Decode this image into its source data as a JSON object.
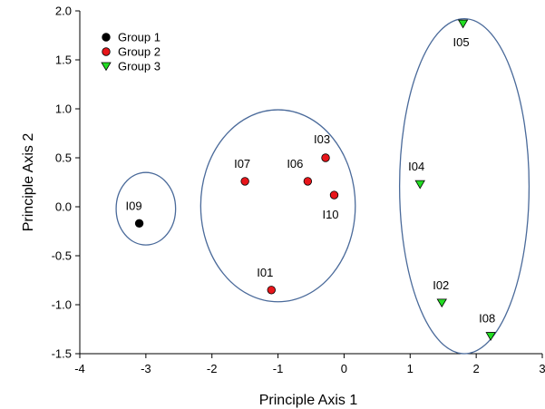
{
  "chart_data": {
    "type": "scatter",
    "title": "",
    "xlabel": "Principle Axis 1",
    "ylabel": "Principle Axis 2",
    "xlim": [
      -4,
      3
    ],
    "ylim": [
      -1.5,
      2.0
    ],
    "xticks": [
      -4,
      -3,
      -2,
      -1,
      0,
      1,
      2,
      3
    ],
    "xtick_labels": [
      "-4",
      "-3",
      "-2",
      "-1",
      "0",
      "1",
      "2",
      "3"
    ],
    "yticks": [
      -1.5,
      -1.0,
      -0.5,
      0.0,
      0.5,
      1.0,
      1.5,
      2.0
    ],
    "ytick_labels": [
      "-1.5",
      "-1.0",
      "-0.5",
      "0.0",
      "0.5",
      "1.0",
      "1.5",
      "2.0"
    ],
    "grid": false,
    "legend_position": "top-left",
    "series": [
      {
        "name": "Group 1",
        "marker": "circle",
        "color": "#000000",
        "points": [
          {
            "label": "I09",
            "x": -3.1,
            "y": -0.17
          }
        ]
      },
      {
        "name": "Group 2",
        "marker": "circle",
        "color": "#e8161b",
        "points": [
          {
            "label": "I07",
            "x": -1.5,
            "y": 0.26
          },
          {
            "label": "I06",
            "x": -0.55,
            "y": 0.26
          },
          {
            "label": "I03",
            "x": -0.28,
            "y": 0.5
          },
          {
            "label": "I10",
            "x": -0.15,
            "y": 0.12
          },
          {
            "label": "I01",
            "x": -1.1,
            "y": -0.85
          }
        ]
      },
      {
        "name": "Group 3",
        "marker": "triangle-down",
        "color": "#22dd22",
        "points": [
          {
            "label": "I05",
            "x": 1.8,
            "y": 1.87
          },
          {
            "label": "I04",
            "x": 1.15,
            "y": 0.23
          },
          {
            "label": "I02",
            "x": 1.48,
            "y": -0.98
          },
          {
            "label": "I08",
            "x": 2.22,
            "y": -1.32
          }
        ]
      }
    ],
    "group_ellipses": [
      {
        "group": "Group 1",
        "cx": -3.0,
        "cy": -0.02,
        "rx": 0.45,
        "ry": 0.37
      },
      {
        "group": "Group 2",
        "cx": -1.0,
        "cy": 0.01,
        "rx": 1.17,
        "ry": 0.98
      },
      {
        "group": "Group 3",
        "cx": 1.82,
        "cy": 0.21,
        "rx": 0.98,
        "ry": 1.71
      }
    ],
    "ellipse_color": "#4a6a9a"
  }
}
